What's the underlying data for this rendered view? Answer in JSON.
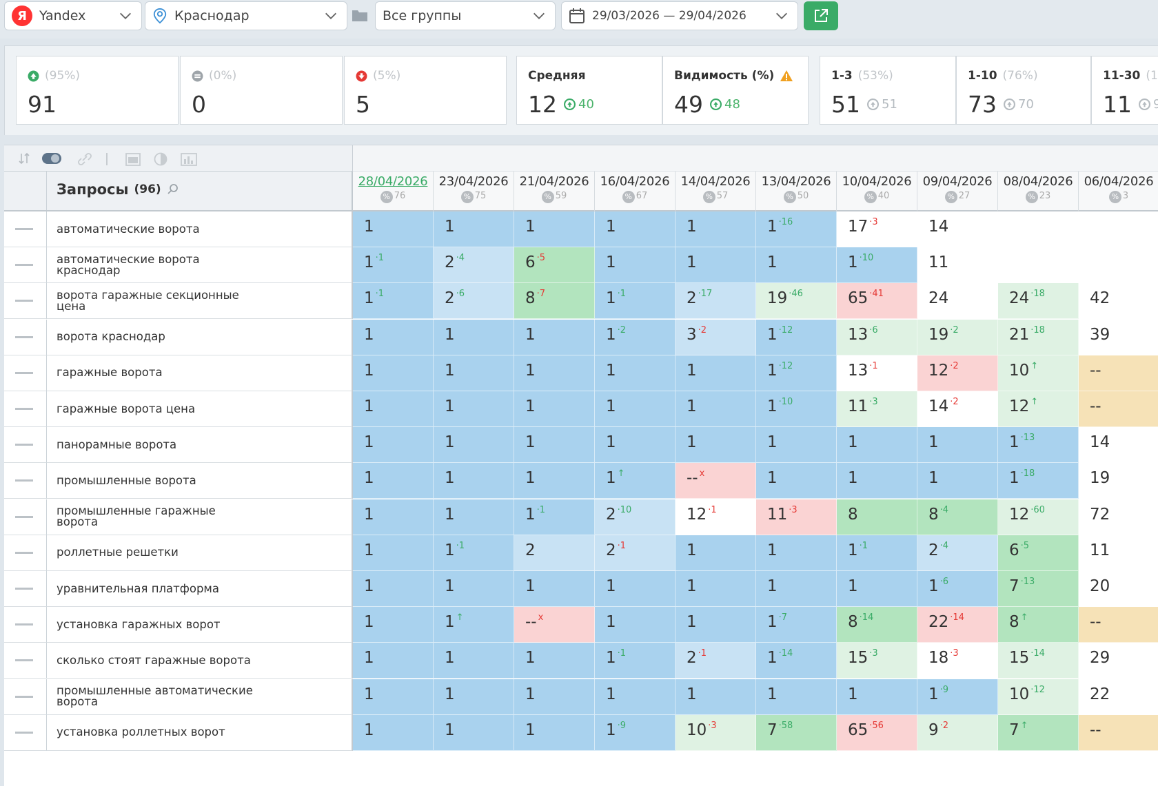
{
  "toolbar": {
    "engine": "Yandex",
    "engine_logo": "Я",
    "region": "Краснодар",
    "group": "Все группы",
    "date_range": "29/03/2026 — 29/04/2026"
  },
  "stats": {
    "up": {
      "pct": "(95%)",
      "value": "91"
    },
    "same": {
      "pct": "(0%)",
      "value": "0"
    },
    "down": {
      "pct": "(5%)",
      "value": "5"
    },
    "avg": {
      "label": "Средняя",
      "value": "12",
      "prev": "40"
    },
    "visibility": {
      "label": "Видимость (%)",
      "value": "49",
      "prev": "48"
    },
    "top3": {
      "label": "1-3",
      "pct": "(53%)",
      "value": "51",
      "prev": "51"
    },
    "top10": {
      "label": "1-10",
      "pct": "(76%)",
      "value": "73",
      "prev": "70"
    },
    "top30": {
      "label": "11-30",
      "pct": "(1",
      "value": "11",
      "prev": "9"
    }
  },
  "colors": {
    "blue": "#a9d2ee",
    "light_blue": "#c8e2f4",
    "green": "#b2e4be",
    "light_green": "#dff2e3",
    "red": "#fad3d3",
    "yellow": "#f6e2b7",
    "accent": "#3aab67"
  },
  "table": {
    "queries_label": "Запросы",
    "queries_count": "(96)",
    "dates": [
      {
        "date": "28/04/2026",
        "pct": "76"
      },
      {
        "date": "23/04/2026",
        "pct": "75"
      },
      {
        "date": "21/04/2026",
        "pct": "59"
      },
      {
        "date": "16/04/2026",
        "pct": "67"
      },
      {
        "date": "14/04/2026",
        "pct": "57"
      },
      {
        "date": "13/04/2026",
        "pct": "50"
      },
      {
        "date": "10/04/2026",
        "pct": "40"
      },
      {
        "date": "09/04/2026",
        "pct": "27"
      },
      {
        "date": "08/04/2026",
        "pct": "23"
      },
      {
        "date": "06/04/2026",
        "pct": "3"
      }
    ],
    "rows": [
      {
        "query": "автоматические ворота",
        "cells": [
          [
            "1",
            "",
            "",
            "blue"
          ],
          [
            "1",
            "",
            "",
            "blue"
          ],
          [
            "1",
            "",
            "",
            "blue"
          ],
          [
            "1",
            "",
            "",
            "blue"
          ],
          [
            "1",
            "",
            "",
            "blue"
          ],
          [
            "1",
            "16",
            "up",
            "blue"
          ],
          [
            "17",
            "3",
            "down",
            "white"
          ],
          [
            "14",
            "",
            "",
            "white"
          ],
          [
            "",
            "",
            "",
            "empty"
          ],
          [
            "",
            "",
            "",
            "empty"
          ]
        ]
      },
      {
        "query": "автоматические ворота краснодар",
        "cells": [
          [
            "1",
            "1",
            "up",
            "blue"
          ],
          [
            "2",
            "4",
            "up",
            "lblue"
          ],
          [
            "6",
            "5",
            "down",
            "green"
          ],
          [
            "1",
            "",
            "",
            "blue"
          ],
          [
            "1",
            "",
            "",
            "blue"
          ],
          [
            "1",
            "",
            "",
            "blue"
          ],
          [
            "1",
            "10",
            "up",
            "blue"
          ],
          [
            "11",
            "",
            "",
            "white"
          ],
          [
            "",
            "",
            "",
            "empty"
          ],
          [
            "",
            "",
            "",
            "empty"
          ]
        ]
      },
      {
        "query": "ворота гаражные секционные цена",
        "cells": [
          [
            "1",
            "1",
            "up",
            "blue"
          ],
          [
            "2",
            "6",
            "up",
            "lblue"
          ],
          [
            "8",
            "7",
            "down",
            "green"
          ],
          [
            "1",
            "1",
            "up",
            "blue"
          ],
          [
            "2",
            "17",
            "up",
            "lblue"
          ],
          [
            "19",
            "46",
            "up",
            "lgreen"
          ],
          [
            "65",
            "41",
            "down",
            "red"
          ],
          [
            "24",
            "",
            "",
            "white"
          ],
          [
            "24",
            "18",
            "up",
            "lgreen"
          ],
          [
            "42",
            "",
            "",
            "white"
          ]
        ]
      },
      {
        "query": "ворота краснодар",
        "cells": [
          [
            "1",
            "",
            "",
            "blue"
          ],
          [
            "1",
            "",
            "",
            "blue"
          ],
          [
            "1",
            "",
            "",
            "blue"
          ],
          [
            "1",
            "2",
            "up",
            "blue"
          ],
          [
            "3",
            "2",
            "down",
            "lblue"
          ],
          [
            "1",
            "12",
            "up",
            "blue"
          ],
          [
            "13",
            "6",
            "up",
            "lgreen"
          ],
          [
            "19",
            "2",
            "up",
            "lgreen"
          ],
          [
            "21",
            "18",
            "up",
            "lgreen"
          ],
          [
            "39",
            "",
            "",
            "white"
          ]
        ]
      },
      {
        "query": "гаражные ворота",
        "cells": [
          [
            "1",
            "",
            "",
            "blue"
          ],
          [
            "1",
            "",
            "",
            "blue"
          ],
          [
            "1",
            "",
            "",
            "blue"
          ],
          [
            "1",
            "",
            "",
            "blue"
          ],
          [
            "1",
            "",
            "",
            "blue"
          ],
          [
            "1",
            "12",
            "up",
            "blue"
          ],
          [
            "13",
            "1",
            "down",
            "white"
          ],
          [
            "12",
            "2",
            "down",
            "red"
          ],
          [
            "10",
            "↑",
            "up",
            "lgreen"
          ],
          [
            "--",
            "",
            "",
            "yellow"
          ]
        ]
      },
      {
        "query": "гаражные ворота цена",
        "cells": [
          [
            "1",
            "",
            "",
            "blue"
          ],
          [
            "1",
            "",
            "",
            "blue"
          ],
          [
            "1",
            "",
            "",
            "blue"
          ],
          [
            "1",
            "",
            "",
            "blue"
          ],
          [
            "1",
            "",
            "",
            "blue"
          ],
          [
            "1",
            "10",
            "up",
            "blue"
          ],
          [
            "11",
            "3",
            "up",
            "lgreen"
          ],
          [
            "14",
            "2",
            "down",
            "white"
          ],
          [
            "12",
            "↑",
            "up",
            "lgreen"
          ],
          [
            "--",
            "",
            "",
            "yellow"
          ]
        ]
      },
      {
        "query": "панорамные ворота",
        "cells": [
          [
            "1",
            "",
            "",
            "blue"
          ],
          [
            "1",
            "",
            "",
            "blue"
          ],
          [
            "1",
            "",
            "",
            "blue"
          ],
          [
            "1",
            "",
            "",
            "blue"
          ],
          [
            "1",
            "",
            "",
            "blue"
          ],
          [
            "1",
            "",
            "",
            "blue"
          ],
          [
            "1",
            "",
            "",
            "blue"
          ],
          [
            "1",
            "",
            "",
            "blue"
          ],
          [
            "1",
            "13",
            "up",
            "blue"
          ],
          [
            "14",
            "",
            "",
            "white"
          ]
        ]
      },
      {
        "query": "промышленные ворота",
        "cells": [
          [
            "1",
            "",
            "",
            "blue"
          ],
          [
            "1",
            "",
            "",
            "blue"
          ],
          [
            "1",
            "",
            "",
            "blue"
          ],
          [
            "1",
            "↑",
            "up",
            "blue"
          ],
          [
            "--",
            "x",
            "down",
            "red"
          ],
          [
            "1",
            "",
            "",
            "blue"
          ],
          [
            "1",
            "",
            "",
            "blue"
          ],
          [
            "1",
            "",
            "",
            "blue"
          ],
          [
            "1",
            "18",
            "up",
            "blue"
          ],
          [
            "19",
            "",
            "",
            "white"
          ]
        ]
      },
      {
        "query": "промышленные гаражные ворота",
        "cells": [
          [
            "1",
            "",
            "",
            "blue"
          ],
          [
            "1",
            "",
            "",
            "blue"
          ],
          [
            "1",
            "1",
            "up",
            "blue"
          ],
          [
            "2",
            "10",
            "up",
            "lblue"
          ],
          [
            "12",
            "1",
            "down",
            "white"
          ],
          [
            "11",
            "3",
            "down",
            "red"
          ],
          [
            "8",
            "",
            "",
            "green"
          ],
          [
            "8",
            "4",
            "up",
            "green"
          ],
          [
            "12",
            "60",
            "up",
            "lgreen"
          ],
          [
            "72",
            "",
            "",
            "white"
          ]
        ]
      },
      {
        "query": "роллетные решетки",
        "cells": [
          [
            "1",
            "",
            "",
            "blue"
          ],
          [
            "1",
            "1",
            "up",
            "blue"
          ],
          [
            "2",
            "",
            "",
            "lblue"
          ],
          [
            "2",
            "1",
            "down",
            "lblue"
          ],
          [
            "1",
            "",
            "",
            "blue"
          ],
          [
            "1",
            "",
            "",
            "blue"
          ],
          [
            "1",
            "1",
            "up",
            "blue"
          ],
          [
            "2",
            "4",
            "up",
            "lblue"
          ],
          [
            "6",
            "5",
            "up",
            "green"
          ],
          [
            "11",
            "",
            "",
            "white"
          ]
        ]
      },
      {
        "query": "уравнительная платформа",
        "cells": [
          [
            "1",
            "",
            "",
            "blue"
          ],
          [
            "1",
            "",
            "",
            "blue"
          ],
          [
            "1",
            "",
            "",
            "blue"
          ],
          [
            "1",
            "",
            "",
            "blue"
          ],
          [
            "1",
            "",
            "",
            "blue"
          ],
          [
            "1",
            "",
            "",
            "blue"
          ],
          [
            "1",
            "",
            "",
            "blue"
          ],
          [
            "1",
            "6",
            "up",
            "blue"
          ],
          [
            "7",
            "13",
            "up",
            "green"
          ],
          [
            "20",
            "",
            "",
            "white"
          ]
        ]
      },
      {
        "query": "установка гаражных ворот",
        "cells": [
          [
            "1",
            "",
            "",
            "blue"
          ],
          [
            "1",
            "↑",
            "up",
            "blue"
          ],
          [
            "--",
            "x",
            "down",
            "red"
          ],
          [
            "1",
            "",
            "",
            "blue"
          ],
          [
            "1",
            "",
            "",
            "blue"
          ],
          [
            "1",
            "7",
            "up",
            "blue"
          ],
          [
            "8",
            "14",
            "up",
            "green"
          ],
          [
            "22",
            "14",
            "down",
            "red"
          ],
          [
            "8",
            "↑",
            "up",
            "green"
          ],
          [
            "--",
            "",
            "",
            "yellow"
          ]
        ]
      },
      {
        "query": "сколько стоят гаражные ворота",
        "cells": [
          [
            "1",
            "",
            "",
            "blue"
          ],
          [
            "1",
            "",
            "",
            "blue"
          ],
          [
            "1",
            "",
            "",
            "blue"
          ],
          [
            "1",
            "1",
            "up",
            "blue"
          ],
          [
            "2",
            "1",
            "down",
            "lblue"
          ],
          [
            "1",
            "14",
            "up",
            "blue"
          ],
          [
            "15",
            "3",
            "up",
            "lgreen"
          ],
          [
            "18",
            "3",
            "down",
            "white"
          ],
          [
            "15",
            "14",
            "up",
            "lgreen"
          ],
          [
            "29",
            "",
            "",
            "white"
          ]
        ]
      },
      {
        "query": "промышленные автоматические ворота",
        "cells": [
          [
            "1",
            "",
            "",
            "blue"
          ],
          [
            "1",
            "",
            "",
            "blue"
          ],
          [
            "1",
            "",
            "",
            "blue"
          ],
          [
            "1",
            "",
            "",
            "blue"
          ],
          [
            "1",
            "",
            "",
            "blue"
          ],
          [
            "1",
            "",
            "",
            "blue"
          ],
          [
            "1",
            "",
            "",
            "blue"
          ],
          [
            "1",
            "9",
            "up",
            "blue"
          ],
          [
            "10",
            "12",
            "up",
            "lgreen"
          ],
          [
            "22",
            "",
            "",
            "white"
          ]
        ]
      },
      {
        "query": "установка роллетных ворот",
        "cells": [
          [
            "1",
            "",
            "",
            "blue"
          ],
          [
            "1",
            "",
            "",
            "blue"
          ],
          [
            "1",
            "",
            "",
            "blue"
          ],
          [
            "1",
            "9",
            "up",
            "blue"
          ],
          [
            "10",
            "3",
            "down",
            "lgreen"
          ],
          [
            "7",
            "58",
            "up",
            "green"
          ],
          [
            "65",
            "56",
            "down",
            "red"
          ],
          [
            "9",
            "2",
            "down",
            "lgreen"
          ],
          [
            "7",
            "↑",
            "up",
            "green"
          ],
          [
            "--",
            "",
            "",
            "yellow"
          ]
        ]
      }
    ]
  }
}
